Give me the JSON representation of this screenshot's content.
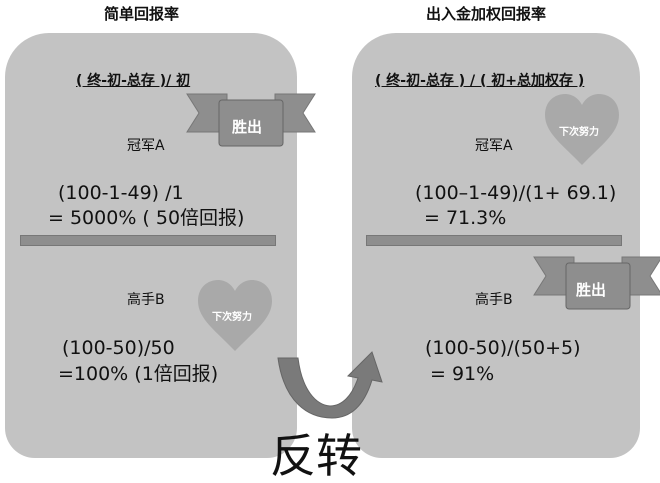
{
  "left": {
    "title": "简单回报率",
    "formula": "( 终-初-总存 )/ 初",
    "champion": "冠军A",
    "champion_calc_1": "(100-1-49) /1",
    "champion_calc_2": "= 5000% ( 50倍回报)",
    "expert": "高手B",
    "expert_calc_1": "(100-50)/50",
    "expert_calc_2": "=100% (1倍回报)",
    "ribbon": "胜出",
    "heart": "下次努力"
  },
  "right": {
    "title": "出入金加权回报率",
    "formula": "( 终-初-总存 ) / ( 初+总加权存 )",
    "champion": "冠军A",
    "champion_calc_1": "(100–1-49)/(1+ 69.1)",
    "champion_calc_2": "= 71.3%",
    "expert": "高手B",
    "expert_calc_1": "(100-50)/(50+5)",
    "expert_calc_2": "= 91%",
    "ribbon": "胜出",
    "heart": "下次努力"
  },
  "reversal": "反转",
  "colors": {
    "panel": "#c3c3c3",
    "ribbon": "#8e8e8e",
    "heart": "#a9a9a9",
    "arrow": "#7a7a7a"
  }
}
